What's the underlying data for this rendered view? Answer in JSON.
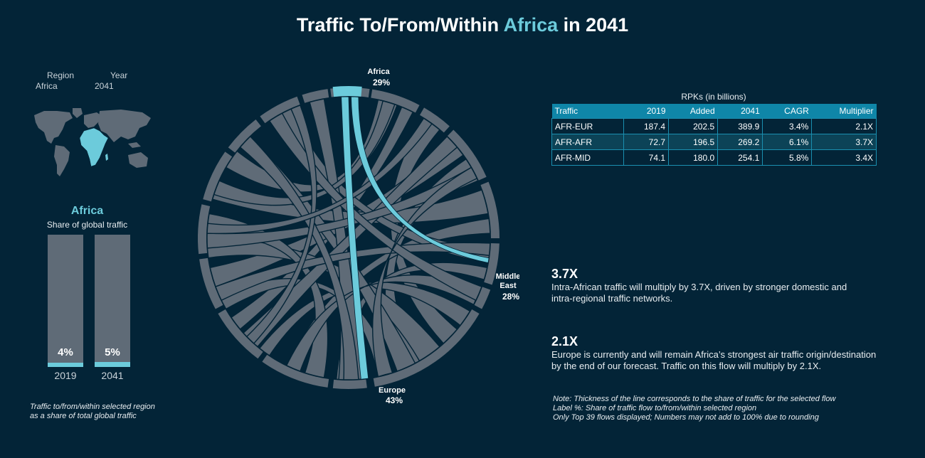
{
  "title": {
    "prefix": "Traffic To/From/Within ",
    "highlight": "Africa",
    "suffix": " in 2041"
  },
  "filters": {
    "region_label": "Region",
    "region_value": "Africa",
    "year_label": "Year",
    "year_value": "2041"
  },
  "map": {
    "highlight_region": "Africa",
    "highlight_color": "#6ccbdb",
    "land_color": "#5f6b77"
  },
  "share": {
    "region": "Africa",
    "subtitle": "Share of global traffic",
    "bars": [
      {
        "year": "2019",
        "pct_label": "4%",
        "value": 4
      },
      {
        "year": "2041",
        "pct_label": "5%",
        "value": 5
      }
    ],
    "footnote_line1": "Traffic to/from/within selected region",
    "footnote_line2": "as a share of total global traffic"
  },
  "chart_data": {
    "type": "chord",
    "highlight_color": "#6ccbdb",
    "base_color": "#5f6b77",
    "segments": [
      {
        "name_lines": [
          "Africa"
        ],
        "pct": "29%"
      },
      {
        "name_lines": [
          "Middle",
          "East"
        ],
        "pct": "28%"
      },
      {
        "name_lines": [
          "Europe"
        ],
        "pct": "43%"
      }
    ],
    "highlighted_flows": [
      "Africa-Middle East",
      "Africa-Europe"
    ]
  },
  "table": {
    "title": "RPKs (in billions)",
    "headers": [
      "Traffic",
      "2019",
      "Added",
      "2041",
      "CAGR",
      "Multiplier"
    ],
    "rows": [
      [
        "AFR-EUR",
        "187.4",
        "202.5",
        "389.9",
        "3.4%",
        "2.1X"
      ],
      [
        "AFR-AFR",
        "72.7",
        "196.5",
        "269.2",
        "6.1%",
        "3.7X"
      ],
      [
        "AFR-MID",
        "74.1",
        "180.0",
        "254.1",
        "5.8%",
        "3.4X"
      ]
    ]
  },
  "insights": [
    {
      "big": "3.7X",
      "line1": "Intra-African traffic will multiply by 3.7X, driven by stronger domestic and",
      "line2": "intra-regional traffic networks."
    },
    {
      "big": "2.1X",
      "line1": "Europe is currently and will remain Africa’s strongest air traffic origin/destination",
      "line2": "by the end of our forecast. Traffic on this flow will multiply by 2.1X."
    }
  ],
  "note": {
    "line1": "Note: Thickness of the line corresponds to the share of traffic for the selected flow",
    "line2": "Label %: Share of traffic flow to/from/within selected region",
    "line3": "Only Top 39 flows displayed; Numbers may not add to 100% due to rounding"
  }
}
